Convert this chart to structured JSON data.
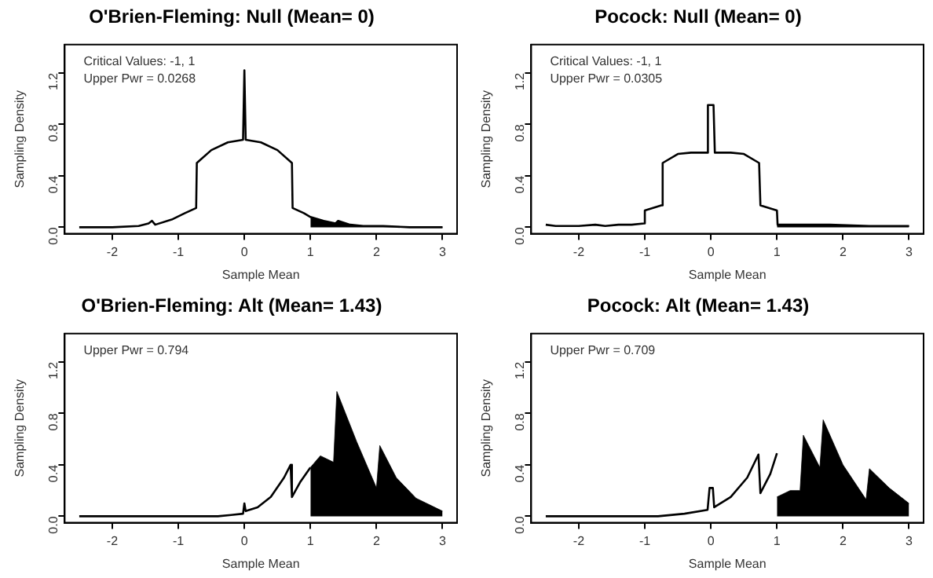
{
  "chart_data": [
    {
      "type": "line",
      "title": "O'Brien-Fleming: Null (Mean= 0)",
      "xlabel": "Sample Mean",
      "ylabel": "Sampling Density",
      "annotations": [
        "Critical Values: -1, 1",
        "Upper Pwr = 0.0268"
      ],
      "xlim": [
        -2.72,
        3.22
      ],
      "ylim": [
        -0.05,
        1.42
      ],
      "xticks": [
        -2,
        -1,
        0,
        1,
        2,
        3
      ],
      "yticks": [
        {
          "value": 0,
          "label": "0.0"
        },
        {
          "value": 0.4,
          "label": "0.4"
        },
        {
          "value": 0.8,
          "label": "0.8"
        },
        {
          "value": 1.2,
          "label": "1.2"
        }
      ],
      "grid": false,
      "legend": false,
      "marker": "none",
      "series": [
        {
          "type": "line",
          "color": "#000000",
          "x": [
            -2.5,
            -2,
            -1.6,
            -1.45,
            -1.4,
            -1.35,
            -1.1,
            -0.9,
            -0.73,
            -0.72,
            -0.5,
            -0.25,
            -0.02,
            0,
            0.02,
            0.25,
            0.5,
            0.72,
            0.73,
            0.9,
            1,
            1.2,
            1.38,
            1.42,
            1.6,
            1.8,
            2.1,
            2.5,
            3
          ],
          "values": [
            0,
            0,
            0.01,
            0.03,
            0.05,
            0.02,
            0.06,
            0.11,
            0.15,
            0.5,
            0.6,
            0.66,
            0.68,
            1.22,
            0.68,
            0.66,
            0.6,
            0.5,
            0.15,
            0.11,
            0.08,
            0.05,
            0.03,
            0.05,
            0.02,
            0.01,
            0.01,
            0,
            0
          ]
        },
        {
          "type": "area",
          "color": "#000000",
          "x": [
            1,
            1.2,
            1.38,
            1.42,
            1.6,
            1.8,
            2.1,
            2.5,
            3
          ],
          "values": [
            0.08,
            0.05,
            0.03,
            0.05,
            0.02,
            0.01,
            0.01,
            0,
            0
          ]
        }
      ]
    },
    {
      "type": "line",
      "title": "Pocock: Null (Mean= 0)",
      "xlabel": "Sample Mean",
      "ylabel": "Sampling Density",
      "annotations": [
        "Critical Values: -1, 1",
        "Upper Pwr = 0.0305"
      ],
      "xlim": [
        -2.72,
        3.22
      ],
      "ylim": [
        -0.05,
        1.42
      ],
      "xticks": [
        -2,
        -1,
        0,
        1,
        2,
        3
      ],
      "yticks": [
        {
          "value": 0,
          "label": "0.0"
        },
        {
          "value": 0.4,
          "label": "0.4"
        },
        {
          "value": 0.8,
          "label": "0.8"
        },
        {
          "value": 1.2,
          "label": "1.2"
        }
      ],
      "grid": false,
      "legend": false,
      "marker": "none",
      "series": [
        {
          "type": "line",
          "color": "#000000",
          "x": [
            -2.5,
            -2.35,
            -2,
            -1.75,
            -1.6,
            -1.4,
            -1.2,
            -1.01,
            -1,
            -0.75,
            -0.73,
            -0.5,
            -0.3,
            -0.06,
            -0.05,
            -0.04,
            0.04,
            0.05,
            0.06,
            0.3,
            0.5,
            0.73,
            0.75,
            1,
            1.01,
            1.4,
            1.8,
            2.4,
            3
          ],
          "values": [
            0.02,
            0.01,
            0.01,
            0.02,
            0.01,
            0.02,
            0.02,
            0.03,
            0.13,
            0.17,
            0.5,
            0.57,
            0.58,
            0.58,
            0.95,
            0.95,
            0.95,
            0.95,
            0.58,
            0.58,
            0.57,
            0.5,
            0.17,
            0.13,
            0.02,
            0.02,
            0.02,
            0.01,
            0.01
          ]
        },
        {
          "type": "area",
          "color": "#000000",
          "x": [
            1,
            1.01,
            1.4,
            1.8,
            2.4,
            3
          ],
          "values": [
            0.13,
            0.02,
            0.02,
            0.02,
            0.01,
            0.01
          ]
        }
      ]
    },
    {
      "type": "line",
      "title": "O'Brien-Fleming: Alt (Mean= 1.43)",
      "xlabel": "Sample Mean",
      "ylabel": "Sampling Density",
      "annotations": [
        "Upper Pwr = 0.794"
      ],
      "xlim": [
        -2.72,
        3.22
      ],
      "ylim": [
        -0.05,
        1.42
      ],
      "xticks": [
        -2,
        -1,
        0,
        1,
        2,
        3
      ],
      "yticks": [
        {
          "value": 0,
          "label": "0.0"
        },
        {
          "value": 0.4,
          "label": "0.4"
        },
        {
          "value": 0.8,
          "label": "0.8"
        },
        {
          "value": 1.2,
          "label": "1.2"
        }
      ],
      "grid": false,
      "legend": false,
      "marker": "none",
      "series": [
        {
          "type": "line",
          "color": "#000000",
          "x": [
            -2.5,
            -1,
            -0.4,
            -0.2,
            -0.02,
            0,
            0.02,
            0.2,
            0.4,
            0.6,
            0.7,
            0.72,
            0.85,
            1
          ],
          "values": [
            0,
            0,
            0,
            0.01,
            0.02,
            0.1,
            0.04,
            0.07,
            0.15,
            0.3,
            0.4,
            0.15,
            0.27,
            0.38
          ]
        },
        {
          "type": "area",
          "color": "#000000",
          "x": [
            1,
            1.15,
            1.35,
            1.4,
            1.7,
            2,
            2.05,
            2.3,
            2.6,
            3
          ],
          "values": [
            0.38,
            0.47,
            0.42,
            0.97,
            0.58,
            0.22,
            0.55,
            0.3,
            0.14,
            0.04
          ]
        }
      ]
    },
    {
      "type": "line",
      "title": "Pocock: Alt (Mean= 1.43)",
      "xlabel": "Sample Mean",
      "ylabel": "Sampling Density",
      "annotations": [
        "Upper Pwr = 0.709"
      ],
      "xlim": [
        -2.72,
        3.22
      ],
      "ylim": [
        -0.05,
        1.42
      ],
      "xticks": [
        -2,
        -1,
        0,
        1,
        2,
        3
      ],
      "yticks": [
        {
          "value": 0,
          "label": "0.0"
        },
        {
          "value": 0.4,
          "label": "0.4"
        },
        {
          "value": 0.8,
          "label": "0.8"
        },
        {
          "value": 1.2,
          "label": "1.2"
        }
      ],
      "grid": false,
      "legend": false,
      "marker": "none",
      "series": [
        {
          "type": "line",
          "color": "#000000",
          "x": [
            -2.5,
            -0.8,
            -0.4,
            -0.05,
            -0.02,
            0.03,
            0.05,
            0.3,
            0.55,
            0.72,
            0.75,
            0.9,
            1
          ],
          "values": [
            0,
            0,
            0.02,
            0.05,
            0.22,
            0.22,
            0.07,
            0.15,
            0.3,
            0.48,
            0.18,
            0.33,
            0.49
          ]
        },
        {
          "type": "area",
          "color": "#000000",
          "x": [
            1,
            1.2,
            1.35,
            1.4,
            1.65,
            1.7,
            2,
            2.35,
            2.4,
            2.7,
            3
          ],
          "values": [
            0.15,
            0.2,
            0.2,
            0.63,
            0.38,
            0.75,
            0.4,
            0.13,
            0.37,
            0.22,
            0.1
          ]
        }
      ]
    }
  ]
}
